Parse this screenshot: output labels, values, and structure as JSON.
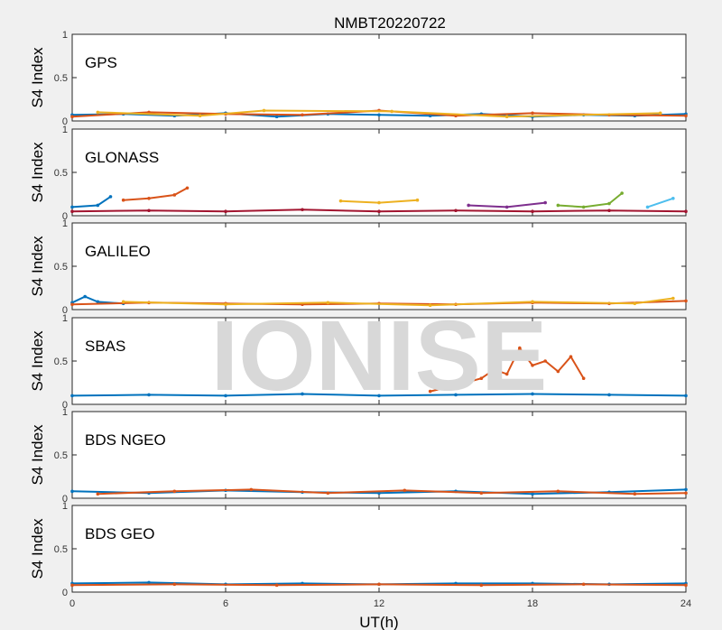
{
  "chart_data": {
    "type": "scatter",
    "title": "NMBT20220722",
    "xlabel": "UT(h)",
    "xlim": [
      0,
      24
    ],
    "xticks": [
      0,
      6,
      12,
      18,
      24
    ],
    "watermark": "IONISE",
    "series_colors": [
      "#0072bd",
      "#d95319",
      "#edb120",
      "#7e2f8e",
      "#77ac30",
      "#4dbeee",
      "#a2142f"
    ],
    "panels": [
      {
        "label": "GPS",
        "ylabel": "S4 Index",
        "ylim": [
          0,
          1
        ],
        "yticks": [
          "0",
          "0.5",
          "1"
        ],
        "series": [
          {
            "x": [
              0,
              2,
              4,
              6,
              8,
              10,
              12,
              14,
              16,
              18,
              20,
              22,
              24
            ],
            "y": [
              0.07,
              0.08,
              0.06,
              0.09,
              0.05,
              0.08,
              0.07,
              0.06,
              0.08,
              0.05,
              0.07,
              0.06,
              0.08
            ]
          },
          {
            "x": [
              0,
              3,
              6,
              9,
              12,
              15,
              18,
              21,
              24
            ],
            "y": [
              0.05,
              0.1,
              0.08,
              0.07,
              0.12,
              0.06,
              0.09,
              0.07,
              0.06
            ]
          },
          {
            "x": [
              1,
              5,
              7.5,
              12.5,
              17,
              23
            ],
            "y": [
              0.1,
              0.06,
              0.12,
              0.11,
              0.05,
              0.09
            ]
          }
        ]
      },
      {
        "label": "GLONASS",
        "ylabel": "S4 Index",
        "ylim": [
          0,
          1
        ],
        "yticks": [
          "0",
          "0.5",
          "1"
        ],
        "series": [
          {
            "x": [
              0,
              1,
              1.5
            ],
            "y": [
              0.1,
              0.12,
              0.22
            ]
          },
          {
            "x": [
              2,
              3,
              4,
              4.5
            ],
            "y": [
              0.18,
              0.2,
              0.24,
              0.32
            ]
          },
          {
            "x": [
              10.5,
              12,
              13.5
            ],
            "y": [
              0.17,
              0.15,
              0.18
            ]
          },
          {
            "x": [
              15.5,
              17,
              18.5
            ],
            "y": [
              0.12,
              0.1,
              0.15
            ]
          },
          {
            "x": [
              19,
              20,
              21,
              21.5
            ],
            "y": [
              0.12,
              0.1,
              0.14,
              0.26
            ]
          },
          {
            "x": [
              22.5,
              23.5
            ],
            "y": [
              0.1,
              0.2
            ]
          },
          {
            "x": [
              0,
              3,
              6,
              9,
              12,
              15,
              18,
              21,
              24
            ],
            "y": [
              0.05,
              0.06,
              0.05,
              0.07,
              0.05,
              0.06,
              0.05,
              0.06,
              0.05
            ]
          }
        ]
      },
      {
        "label": "GALILEO",
        "ylabel": "S4 Index",
        "ylim": [
          0,
          1
        ],
        "yticks": [
          "0",
          "0.5",
          "1"
        ],
        "series": [
          {
            "x": [
              0,
              0.5,
              1,
              2
            ],
            "y": [
              0.08,
              0.15,
              0.09,
              0.07
            ]
          },
          {
            "x": [
              0,
              3,
              6,
              9,
              12,
              15,
              18,
              21,
              24
            ],
            "y": [
              0.06,
              0.08,
              0.07,
              0.06,
              0.07,
              0.06,
              0.08,
              0.07,
              0.1
            ]
          },
          {
            "x": [
              2,
              6,
              10,
              14,
              18,
              22,
              23.5
            ],
            "y": [
              0.09,
              0.06,
              0.08,
              0.05,
              0.09,
              0.07,
              0.13
            ]
          }
        ]
      },
      {
        "label": "SBAS",
        "ylabel": "S4 Index",
        "ylim": [
          0,
          1
        ],
        "yticks": [
          "0",
          "0.5",
          "1"
        ],
        "series": [
          {
            "x": [
              0,
              3,
              6,
              9,
              12,
              15,
              18,
              21,
              24
            ],
            "y": [
              0.1,
              0.11,
              0.1,
              0.12,
              0.1,
              0.11,
              0.12,
              0.11,
              0.1
            ]
          },
          {
            "x": [
              14,
              15,
              16,
              16.5,
              17,
              17.5,
              18,
              18.5,
              19,
              19.5,
              20
            ],
            "y": [
              0.15,
              0.22,
              0.3,
              0.4,
              0.35,
              0.65,
              0.45,
              0.5,
              0.38,
              0.55,
              0.3
            ]
          }
        ]
      },
      {
        "label": "BDS NGEO",
        "ylabel": "S4 Index",
        "ylim": [
          0,
          1
        ],
        "yticks": [
          "0",
          "0.5",
          "1"
        ],
        "series": [
          {
            "x": [
              0,
              3,
              6,
              9,
              12,
              15,
              18,
              21,
              24
            ],
            "y": [
              0.08,
              0.06,
              0.09,
              0.07,
              0.06,
              0.08,
              0.05,
              0.07,
              0.1
            ]
          },
          {
            "x": [
              1,
              4,
              7,
              10,
              13,
              16,
              19,
              22,
              24
            ],
            "y": [
              0.05,
              0.08,
              0.1,
              0.06,
              0.09,
              0.06,
              0.08,
              0.05,
              0.06
            ]
          }
        ]
      },
      {
        "label": "BDS GEO",
        "ylabel": "S4 Index",
        "ylim": [
          0,
          1
        ],
        "yticks": [
          "0",
          "0.5",
          "1"
        ],
        "series": [
          {
            "x": [
              0,
              3,
              6,
              9,
              12,
              15,
              18,
              21,
              24
            ],
            "y": [
              0.1,
              0.11,
              0.09,
              0.1,
              0.09,
              0.1,
              0.1,
              0.09,
              0.1
            ]
          },
          {
            "x": [
              0,
              4,
              8,
              12,
              16,
              20,
              24
            ],
            "y": [
              0.08,
              0.09,
              0.08,
              0.09,
              0.08,
              0.09,
              0.08
            ]
          }
        ]
      }
    ]
  }
}
